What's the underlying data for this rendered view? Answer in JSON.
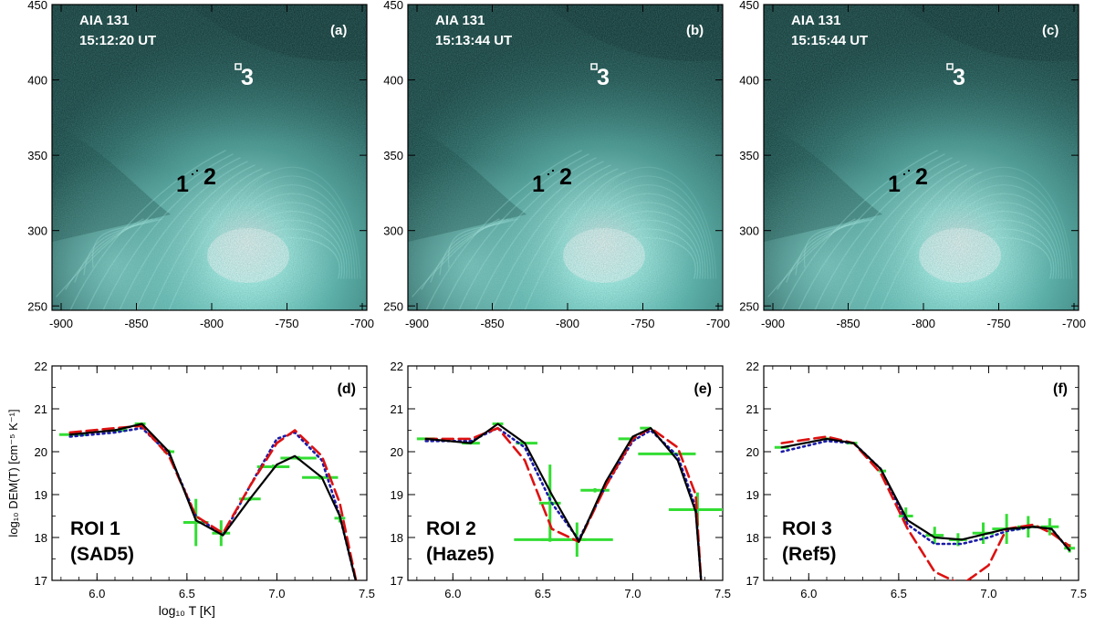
{
  "figure": {
    "image_panels": [
      {
        "label": "(a)",
        "instrument": "AIA 131",
        "time": "15:12:20 UT"
      },
      {
        "label": "(b)",
        "instrument": "AIA 131",
        "time": "15:13:44 UT"
      },
      {
        "label": "(c)",
        "instrument": "AIA 131",
        "time": "15:15:44 UT"
      }
    ],
    "image_axes": {
      "xticks": [
        "-900",
        "-850",
        "-800",
        "-750",
        "-700"
      ],
      "yticks": [
        "450",
        "400",
        "350",
        "300",
        "250"
      ]
    },
    "roi_markers": {
      "one": "1",
      "two": "2",
      "three": "3"
    },
    "colors": {
      "image_base": "#2f6e6a",
      "image_bright": "#d8fffb",
      "solid": "#000000",
      "dashed": "#dd1111",
      "dotted": "#1a1aa8",
      "error": "#33dd33"
    }
  },
  "chart_data": [
    {
      "type": "line",
      "panel": "(d)",
      "roi": "ROI 1",
      "region": "(SAD5)",
      "xlabel": "log₁₀ T [K]",
      "ylabel": "log₁₀ DEM(T) [cm⁻⁵ K⁻¹]",
      "xlim": [
        5.75,
        7.5
      ],
      "ylim": [
        17,
        22
      ],
      "xticks": [
        "6.0",
        "6.5",
        "7.0",
        "7.5"
      ],
      "yticks": [
        "22",
        "21",
        "20",
        "19",
        "18",
        "17"
      ],
      "x": [
        5.85,
        6.1,
        6.25,
        6.4,
        6.55,
        6.7,
        6.85,
        7.0,
        7.1,
        7.25,
        7.35,
        7.45
      ],
      "series": [
        {
          "name": "solid",
          "values": [
            20.4,
            20.5,
            20.65,
            20.0,
            18.4,
            18.05,
            18.9,
            19.7,
            19.9,
            19.4,
            18.5,
            16.8
          ]
        },
        {
          "name": "dashed",
          "values": [
            20.45,
            20.55,
            20.6,
            19.9,
            18.5,
            18.1,
            19.2,
            20.2,
            20.5,
            19.9,
            18.8,
            16.8
          ]
        },
        {
          "name": "dotted",
          "values": [
            20.35,
            20.45,
            20.55,
            19.95,
            18.5,
            18.05,
            19.2,
            20.3,
            20.45,
            19.8,
            18.5,
            16.8
          ]
        }
      ],
      "errorbars": [
        {
          "x": 5.87,
          "y": 20.4,
          "dx": 0.08,
          "dy": 0
        },
        {
          "x": 6.12,
          "y": 20.5,
          "dx": 0.05,
          "dy": 0
        },
        {
          "x": 6.24,
          "y": 20.65,
          "dx": 0.03,
          "dy": 0
        },
        {
          "x": 6.4,
          "y": 20.0,
          "dx": 0.03,
          "dy": 0.05
        },
        {
          "x": 6.55,
          "y": 18.35,
          "dx": 0.07,
          "dy": 0.55
        },
        {
          "x": 6.69,
          "y": 18.1,
          "dx": 0.05,
          "dy": 0.3
        },
        {
          "x": 6.85,
          "y": 18.9,
          "dx": 0.06,
          "dy": 0.05
        },
        {
          "x": 6.98,
          "y": 19.65,
          "dx": 0.09,
          "dy": 0.05
        },
        {
          "x": 7.12,
          "y": 19.85,
          "dx": 0.1,
          "dy": 0.05
        },
        {
          "x": 7.24,
          "y": 19.4,
          "dx": 0.1,
          "dy": 0.05
        },
        {
          "x": 7.35,
          "y": 18.45,
          "dx": 0.03,
          "dy": 0.1
        }
      ]
    },
    {
      "type": "line",
      "panel": "(e)",
      "roi": "ROI 2",
      "region": "(Haze5)",
      "xlim": [
        5.75,
        7.5
      ],
      "ylim": [
        17,
        22
      ],
      "xticks": [
        "6.0",
        "6.5",
        "7.0",
        "7.5"
      ],
      "yticks": [
        "22",
        "21",
        "20",
        "19",
        "18",
        "17"
      ],
      "x": [
        5.85,
        6.1,
        6.25,
        6.4,
        6.55,
        6.7,
        6.85,
        7.0,
        7.1,
        7.25,
        7.35,
        7.38
      ],
      "series": [
        {
          "name": "solid",
          "values": [
            20.3,
            20.2,
            20.65,
            20.2,
            19.0,
            17.9,
            19.3,
            20.35,
            20.55,
            19.8,
            18.6,
            17.0
          ]
        },
        {
          "name": "dashed",
          "values": [
            20.3,
            20.3,
            20.55,
            19.8,
            18.2,
            17.9,
            19.2,
            20.3,
            20.55,
            20.1,
            19.0,
            17.0
          ]
        },
        {
          "name": "dotted",
          "values": [
            20.25,
            20.25,
            20.55,
            20.1,
            18.8,
            17.95,
            19.2,
            20.25,
            20.5,
            19.9,
            18.7,
            17.0
          ]
        }
      ],
      "errorbars": [
        {
          "x": 5.85,
          "y": 20.3,
          "dx": 0.05,
          "dy": 0
        },
        {
          "x": 6.1,
          "y": 20.2,
          "dx": 0.05,
          "dy": 0
        },
        {
          "x": 6.25,
          "y": 20.65,
          "dx": 0.03,
          "dy": 0
        },
        {
          "x": 6.41,
          "y": 20.2,
          "dx": 0.06,
          "dy": 0
        },
        {
          "x": 6.54,
          "y": 18.8,
          "dx": 0.06,
          "dy": 0.9
        },
        {
          "x": 6.54,
          "y": 17.95,
          "dx": 0.2,
          "dy": 0
        },
        {
          "x": 6.69,
          "y": 17.95,
          "dx": 0.2,
          "dy": 0.4
        },
        {
          "x": 6.79,
          "y": 19.1,
          "dx": 0.08,
          "dy": 0.05
        },
        {
          "x": 6.97,
          "y": 20.3,
          "dx": 0.05,
          "dy": 0
        },
        {
          "x": 7.07,
          "y": 20.55,
          "dx": 0.03,
          "dy": 0
        },
        {
          "x": 7.19,
          "y": 19.95,
          "dx": 0.16,
          "dy": 0
        },
        {
          "x": 7.36,
          "y": 18.65,
          "dx": 0.16,
          "dy": 0.4
        }
      ]
    },
    {
      "type": "line",
      "panel": "(f)",
      "roi": "ROI 3",
      "region": "(Ref5)",
      "xlim": [
        5.75,
        7.5
      ],
      "ylim": [
        17,
        22
      ],
      "xticks": [
        "6.0",
        "6.5",
        "7.0",
        "7.5"
      ],
      "yticks": [
        "22",
        "21",
        "20",
        "19",
        "18",
        "17"
      ],
      "x": [
        5.85,
        6.1,
        6.25,
        6.4,
        6.55,
        6.7,
        6.85,
        7.0,
        7.1,
        7.25,
        7.35,
        7.45
      ],
      "series": [
        {
          "name": "solid",
          "values": [
            20.1,
            20.3,
            20.2,
            19.6,
            18.4,
            18.0,
            17.95,
            18.1,
            18.2,
            18.25,
            18.2,
            17.7
          ]
        },
        {
          "name": "dashed",
          "values": [
            20.2,
            20.35,
            20.2,
            19.5,
            18.2,
            17.2,
            16.9,
            17.35,
            18.2,
            18.3,
            18.1,
            17.8
          ]
        },
        {
          "name": "dotted",
          "values": [
            20.0,
            20.25,
            20.2,
            19.6,
            18.3,
            17.85,
            17.85,
            18.0,
            18.15,
            18.25,
            18.2,
            17.7
          ]
        }
      ],
      "errorbars": [
        {
          "x": 5.85,
          "y": 20.1,
          "dx": 0.04,
          "dy": 0
        },
        {
          "x": 6.1,
          "y": 20.3,
          "dx": 0.03,
          "dy": 0
        },
        {
          "x": 6.24,
          "y": 20.2,
          "dx": 0.03,
          "dy": 0
        },
        {
          "x": 6.41,
          "y": 19.55,
          "dx": 0.02,
          "dy": 0
        },
        {
          "x": 6.54,
          "y": 18.5,
          "dx": 0.04,
          "dy": 0.2
        },
        {
          "x": 6.7,
          "y": 18.05,
          "dx": 0.05,
          "dy": 0.2
        },
        {
          "x": 6.83,
          "y": 17.95,
          "dx": 0.05,
          "dy": 0.15
        },
        {
          "x": 6.97,
          "y": 18.1,
          "dx": 0.06,
          "dy": 0.25
        },
        {
          "x": 7.1,
          "y": 18.2,
          "dx": 0.08,
          "dy": 0.35
        },
        {
          "x": 7.22,
          "y": 18.25,
          "dx": 0.06,
          "dy": 0.25
        },
        {
          "x": 7.34,
          "y": 18.25,
          "dx": 0.05,
          "dy": 0.2
        },
        {
          "x": 7.45,
          "y": 17.75,
          "dx": 0.03,
          "dy": 0.1
        }
      ]
    }
  ]
}
